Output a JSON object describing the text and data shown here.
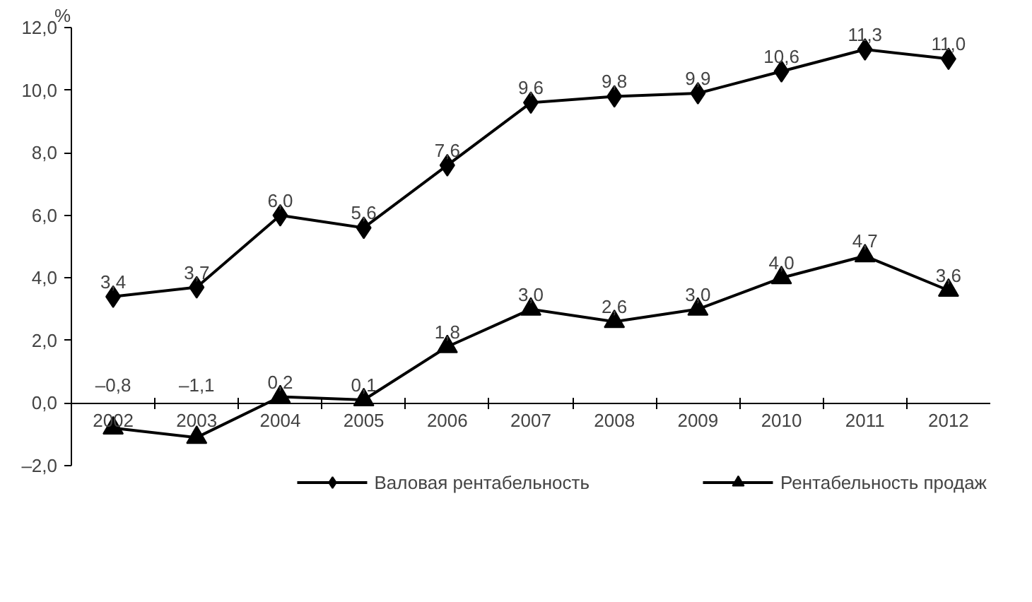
{
  "chart_data": {
    "type": "line",
    "ylabel": "%",
    "categories": [
      "2002",
      "2003",
      "2004",
      "2005",
      "2006",
      "2007",
      "2008",
      "2009",
      "2010",
      "2011",
      "2012"
    ],
    "series": [
      {
        "name": "Валовая рентабельность",
        "color": "#000000",
        "marker": "diamond",
        "values": [
          3.4,
          3.7,
          6.0,
          5.6,
          7.6,
          9.6,
          9.8,
          9.9,
          10.6,
          11.3,
          11.0
        ],
        "value_labels": [
          "3,4",
          "3,7",
          "6,0",
          "5,6",
          "7,6",
          "9,6",
          "9,8",
          "9,9",
          "10,6",
          "11,3",
          "11,0"
        ]
      },
      {
        "name": "Рентабельность продаж",
        "color": "#000000",
        "marker": "triangle",
        "values": [
          -0.8,
          -1.1,
          0.2,
          0.1,
          1.8,
          3.0,
          2.6,
          3.0,
          4.0,
          4.7,
          3.6
        ],
        "value_labels": [
          "–0,8",
          "–1,1",
          "0,2",
          "0,1",
          "1,8",
          "3,0",
          "2,6",
          "3,0",
          "4,0",
          "4,7",
          "3,6"
        ]
      }
    ],
    "ylim": [
      -2,
      12
    ],
    "yticks": [
      {
        "value": -2,
        "label": "–2,0"
      },
      {
        "value": 0,
        "label": "0,0"
      },
      {
        "value": 2,
        "label": "2,0"
      },
      {
        "value": 4,
        "label": "4,0"
      },
      {
        "value": 6,
        "label": "6,0"
      },
      {
        "value": 8,
        "label": "8,0"
      },
      {
        "value": 10,
        "label": "10,0"
      },
      {
        "value": 12,
        "label": "12,0"
      }
    ],
    "grid": false,
    "legend": "bottom",
    "line_style": "solid"
  }
}
